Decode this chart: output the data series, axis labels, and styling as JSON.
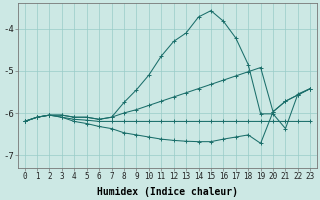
{
  "xlabel": "Humidex (Indice chaleur)",
  "background_color": "#cce8e4",
  "line_color": "#1a6e6a",
  "grid_color": "#99ccc8",
  "x_values": [
    0,
    1,
    2,
    3,
    4,
    5,
    6,
    7,
    8,
    9,
    10,
    11,
    12,
    13,
    14,
    15,
    16,
    17,
    18,
    19,
    20,
    21,
    22,
    23
  ],
  "y_curve": [
    -6.2,
    -6.1,
    -6.05,
    -6.05,
    -6.1,
    -6.1,
    -6.15,
    -6.1,
    -5.75,
    -5.45,
    -5.1,
    -4.65,
    -4.3,
    -4.1,
    -3.72,
    -3.57,
    -3.82,
    -4.22,
    -4.85,
    -6.02,
    -6.02,
    -6.37,
    -5.55,
    -5.42
  ],
  "y_slope": [
    -6.2,
    -6.1,
    -6.05,
    -6.05,
    -6.1,
    -6.1,
    -6.15,
    -6.1,
    -6.0,
    -5.92,
    -5.82,
    -5.72,
    -5.62,
    -5.52,
    -5.42,
    -5.32,
    -5.22,
    -5.12,
    -5.02,
    -4.92,
    -5.97,
    -5.72,
    -5.57,
    -5.42
  ],
  "y_flat": [
    -6.2,
    -6.1,
    -6.05,
    -6.1,
    -6.15,
    -6.17,
    -6.2,
    -6.2,
    -6.2,
    -6.2,
    -6.2,
    -6.2,
    -6.2,
    -6.2,
    -6.2,
    -6.2,
    -6.2,
    -6.2,
    -6.2,
    -6.2,
    -6.2,
    -6.2,
    -6.2,
    -6.2
  ],
  "y_lower": [
    -6.2,
    -6.1,
    -6.05,
    -6.1,
    -6.2,
    -6.25,
    -6.32,
    -6.37,
    -6.47,
    -6.52,
    -6.57,
    -6.62,
    -6.65,
    -6.67,
    -6.68,
    -6.68,
    -6.62,
    -6.57,
    -6.52,
    -6.72,
    -5.97,
    -5.72,
    -5.57,
    -5.42
  ],
  "xlim": [
    -0.5,
    23.5
  ],
  "ylim": [
    -7.3,
    -3.4
  ],
  "yticks": [
    -7,
    -6,
    -5,
    -4
  ],
  "xtick_fontsize": 5.5,
  "ytick_fontsize": 6.5,
  "xlabel_fontsize": 7.0
}
